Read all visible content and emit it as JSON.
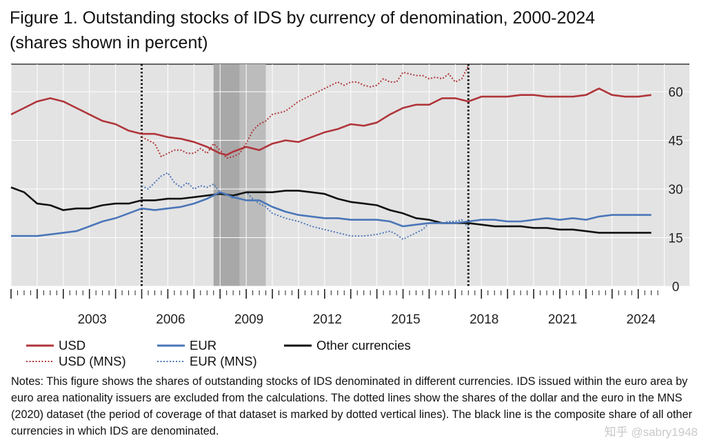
{
  "title": {
    "line1": "Figure 1. Outstanding stocks of IDS by currency of denomination, 2000-2024",
    "line2": "(shares shown in percent)"
  },
  "notes": "Notes: This figure shows the shares of outstanding stocks of IDS denominated in different currencies. IDS issued within the euro area by euro area nationality issuers are excluded from the calculations. The dotted lines show the shares of the dollar and the euro in the MNS (2020) dataset (the period of coverage of that dataset is marked by dotted vertical lines). The black line is the composite share of all other currencies in which IDS are denominated.",
  "watermark": "知乎 @sabry1948",
  "colors": {
    "usd": "#b0353a",
    "eur": "#4a76b8",
    "other": "#111111",
    "plot_bg": "#e3e3e3",
    "shade_dark": "#a8a8a8",
    "shade_light": "#bcbcbc",
    "grid": "#ffffff"
  },
  "chart_data": {
    "type": "line",
    "title": "Outstanding stocks of IDS by currency of denomination, 2000-2024",
    "ylabel": "shares shown in percent",
    "xlim": [
      2000,
      2025
    ],
    "ylim": [
      0,
      70
    ],
    "y_ticks": [
      "0",
      "15",
      "30",
      "45",
      "60"
    ],
    "x_ticks": [
      "2003",
      "2006",
      "2009",
      "2012",
      "2015",
      "2018",
      "2021",
      "2024"
    ],
    "x_tick_values": [
      2003,
      2006,
      2009,
      2012,
      2015,
      2018,
      2021,
      2024
    ],
    "shaded_periods": [
      [
        2007.75,
        2008.75
      ],
      [
        2008.75,
        2009.75
      ]
    ],
    "dotted_verticals": [
      2005,
      2017.5
    ],
    "series": [
      {
        "name": "USD",
        "key": "usd",
        "style": "solid",
        "x": [
          2000,
          2000.5,
          2001,
          2001.5,
          2002,
          2002.5,
          2003,
          2003.5,
          2004,
          2004.5,
          2005,
          2005.5,
          2006,
          2006.5,
          2007,
          2007.5,
          2008,
          2008.25,
          2008.5,
          2009,
          2009.5,
          2010,
          2010.5,
          2011,
          2011.5,
          2012,
          2012.5,
          2013,
          2013.5,
          2014,
          2014.5,
          2015,
          2015.5,
          2016,
          2016.5,
          2017,
          2017.5,
          2018,
          2018.5,
          2019,
          2019.5,
          2020,
          2020.5,
          2021,
          2021.5,
          2022,
          2022.5,
          2023,
          2023.5,
          2024,
          2024.5
        ],
        "values": [
          53,
          55,
          57,
          58,
          57,
          55,
          53,
          51,
          50,
          48,
          47,
          47,
          46,
          45.5,
          44.5,
          43,
          41,
          40.5,
          41.5,
          43,
          42,
          44,
          45,
          44.5,
          46,
          47.5,
          48.5,
          50,
          49.5,
          50.5,
          53,
          55,
          56,
          56,
          58,
          58,
          57,
          58.5,
          58.5,
          58.5,
          59,
          59,
          58.5,
          58.5,
          58.5,
          59,
          61,
          59,
          58.5,
          58.5,
          59
        ]
      },
      {
        "name": "EUR",
        "key": "eur",
        "style": "solid",
        "x": [
          2000,
          2000.5,
          2001,
          2001.5,
          2002,
          2002.5,
          2003,
          2003.5,
          2004,
          2004.5,
          2005,
          2005.5,
          2006,
          2006.5,
          2007,
          2007.5,
          2008,
          2008.5,
          2009,
          2009.5,
          2010,
          2010.5,
          2011,
          2011.5,
          2012,
          2012.5,
          2013,
          2013.5,
          2014,
          2014.5,
          2015,
          2015.5,
          2016,
          2016.5,
          2017,
          2017.5,
          2018,
          2018.5,
          2019,
          2019.5,
          2020,
          2020.5,
          2021,
          2021.5,
          2022,
          2022.5,
          2023,
          2023.5,
          2024,
          2024.5
        ],
        "values": [
          15.5,
          15.5,
          15.5,
          16,
          16.5,
          17,
          18.5,
          20,
          21,
          22.5,
          24,
          23.5,
          24,
          24.5,
          25.5,
          27,
          29,
          27.5,
          26.5,
          26.5,
          24.5,
          23,
          22,
          21.5,
          21,
          21,
          20.5,
          20.5,
          20.5,
          20,
          18.5,
          19,
          19.5,
          19.5,
          19.5,
          20,
          20.5,
          20.5,
          20,
          20,
          20.5,
          21,
          20.5,
          21,
          20.5,
          21.5,
          22,
          22,
          22,
          22
        ]
      },
      {
        "name": "Other currencies",
        "key": "other",
        "style": "solid",
        "x": [
          2000,
          2000.5,
          2001,
          2001.5,
          2002,
          2002.5,
          2003,
          2003.5,
          2004,
          2004.5,
          2005,
          2005.5,
          2006,
          2006.5,
          2007,
          2007.5,
          2008,
          2008.5,
          2009,
          2009.5,
          2010,
          2010.5,
          2011,
          2011.5,
          2012,
          2012.5,
          2013,
          2013.5,
          2014,
          2014.5,
          2015,
          2015.5,
          2016,
          2016.5,
          2017,
          2017.5,
          2018,
          2018.5,
          2019,
          2019.5,
          2020,
          2020.5,
          2021,
          2021.5,
          2022,
          2022.5,
          2023,
          2023.5,
          2024,
          2024.5
        ],
        "values": [
          30.5,
          29,
          25.5,
          25,
          23.5,
          24,
          24,
          25,
          25.5,
          25.5,
          26.5,
          26.5,
          27,
          27,
          27.5,
          28,
          28.5,
          28,
          29,
          29,
          29,
          29.5,
          29.5,
          29,
          28.5,
          27,
          26,
          25.5,
          25,
          23.5,
          22.5,
          21,
          20.5,
          19.5,
          19.5,
          19.5,
          19,
          18.5,
          18.5,
          18.5,
          18,
          18,
          17.5,
          17.5,
          17,
          16.5,
          16.5,
          16.5,
          16.5,
          16.5
        ]
      },
      {
        "name": "USD (MNS)",
        "key": "usd",
        "style": "dotted",
        "x": [
          2005,
          2005.25,
          2005.5,
          2005.75,
          2006,
          2006.25,
          2006.5,
          2006.75,
          2007,
          2007.25,
          2007.5,
          2007.75,
          2008,
          2008.25,
          2008.5,
          2008.75,
          2009,
          2009.25,
          2009.5,
          2009.75,
          2010,
          2010.5,
          2011,
          2011.5,
          2012,
          2012.25,
          2012.5,
          2012.75,
          2013,
          2013.25,
          2013.5,
          2013.75,
          2014,
          2014.25,
          2014.5,
          2014.75,
          2015,
          2015.25,
          2015.5,
          2015.75,
          2016,
          2016.25,
          2016.5,
          2016.75,
          2017,
          2017.25,
          2017.5
        ],
        "values": [
          46,
          45,
          44,
          40,
          41,
          42,
          42,
          41,
          41,
          42.5,
          41,
          44,
          42,
          39.5,
          40,
          41,
          44,
          48,
          50,
          51,
          53,
          54,
          57,
          59,
          61,
          62,
          63,
          62,
          63,
          63,
          62,
          61.5,
          62,
          64,
          63,
          63,
          66,
          65.5,
          65,
          65,
          64,
          64.5,
          64,
          65.5,
          63,
          64,
          68
        ]
      },
      {
        "name": "EUR (MNS)",
        "key": "eur",
        "style": "dotted",
        "x": [
          2005,
          2005.25,
          2005.5,
          2005.75,
          2006,
          2006.25,
          2006.5,
          2006.75,
          2007,
          2007.25,
          2007.5,
          2007.75,
          2008,
          2008.25,
          2008.5,
          2008.75,
          2009,
          2009.25,
          2009.5,
          2009.75,
          2010,
          2010.5,
          2011,
          2011.5,
          2012,
          2012.5,
          2013,
          2013.5,
          2014,
          2014.25,
          2014.5,
          2014.75,
          2015,
          2015.25,
          2015.5,
          2015.75,
          2016,
          2016.25,
          2016.5,
          2016.75,
          2017,
          2017.25,
          2017.5
        ],
        "values": [
          31,
          30,
          32,
          34,
          35,
          32,
          30.5,
          32,
          30,
          31,
          30.5,
          31.5,
          29,
          28.5,
          27,
          28.5,
          29,
          27,
          25.5,
          24.5,
          22.5,
          21,
          20,
          18.5,
          17.5,
          16.5,
          15.5,
          15.5,
          16,
          16.5,
          17,
          16,
          14.5,
          15.5,
          16.5,
          17.5,
          19.5,
          19.5,
          19.5,
          20,
          20,
          20.5,
          18
        ]
      }
    ],
    "legend": [
      {
        "label": "USD",
        "key": "usd",
        "style": "solid"
      },
      {
        "label": "EUR",
        "key": "eur",
        "style": "solid"
      },
      {
        "label": "Other currencies",
        "key": "other",
        "style": "solid"
      },
      {
        "label": "USD (MNS)",
        "key": "usd",
        "style": "dotted"
      },
      {
        "label": "EUR (MNS)",
        "key": "eur",
        "style": "dotted"
      }
    ]
  }
}
